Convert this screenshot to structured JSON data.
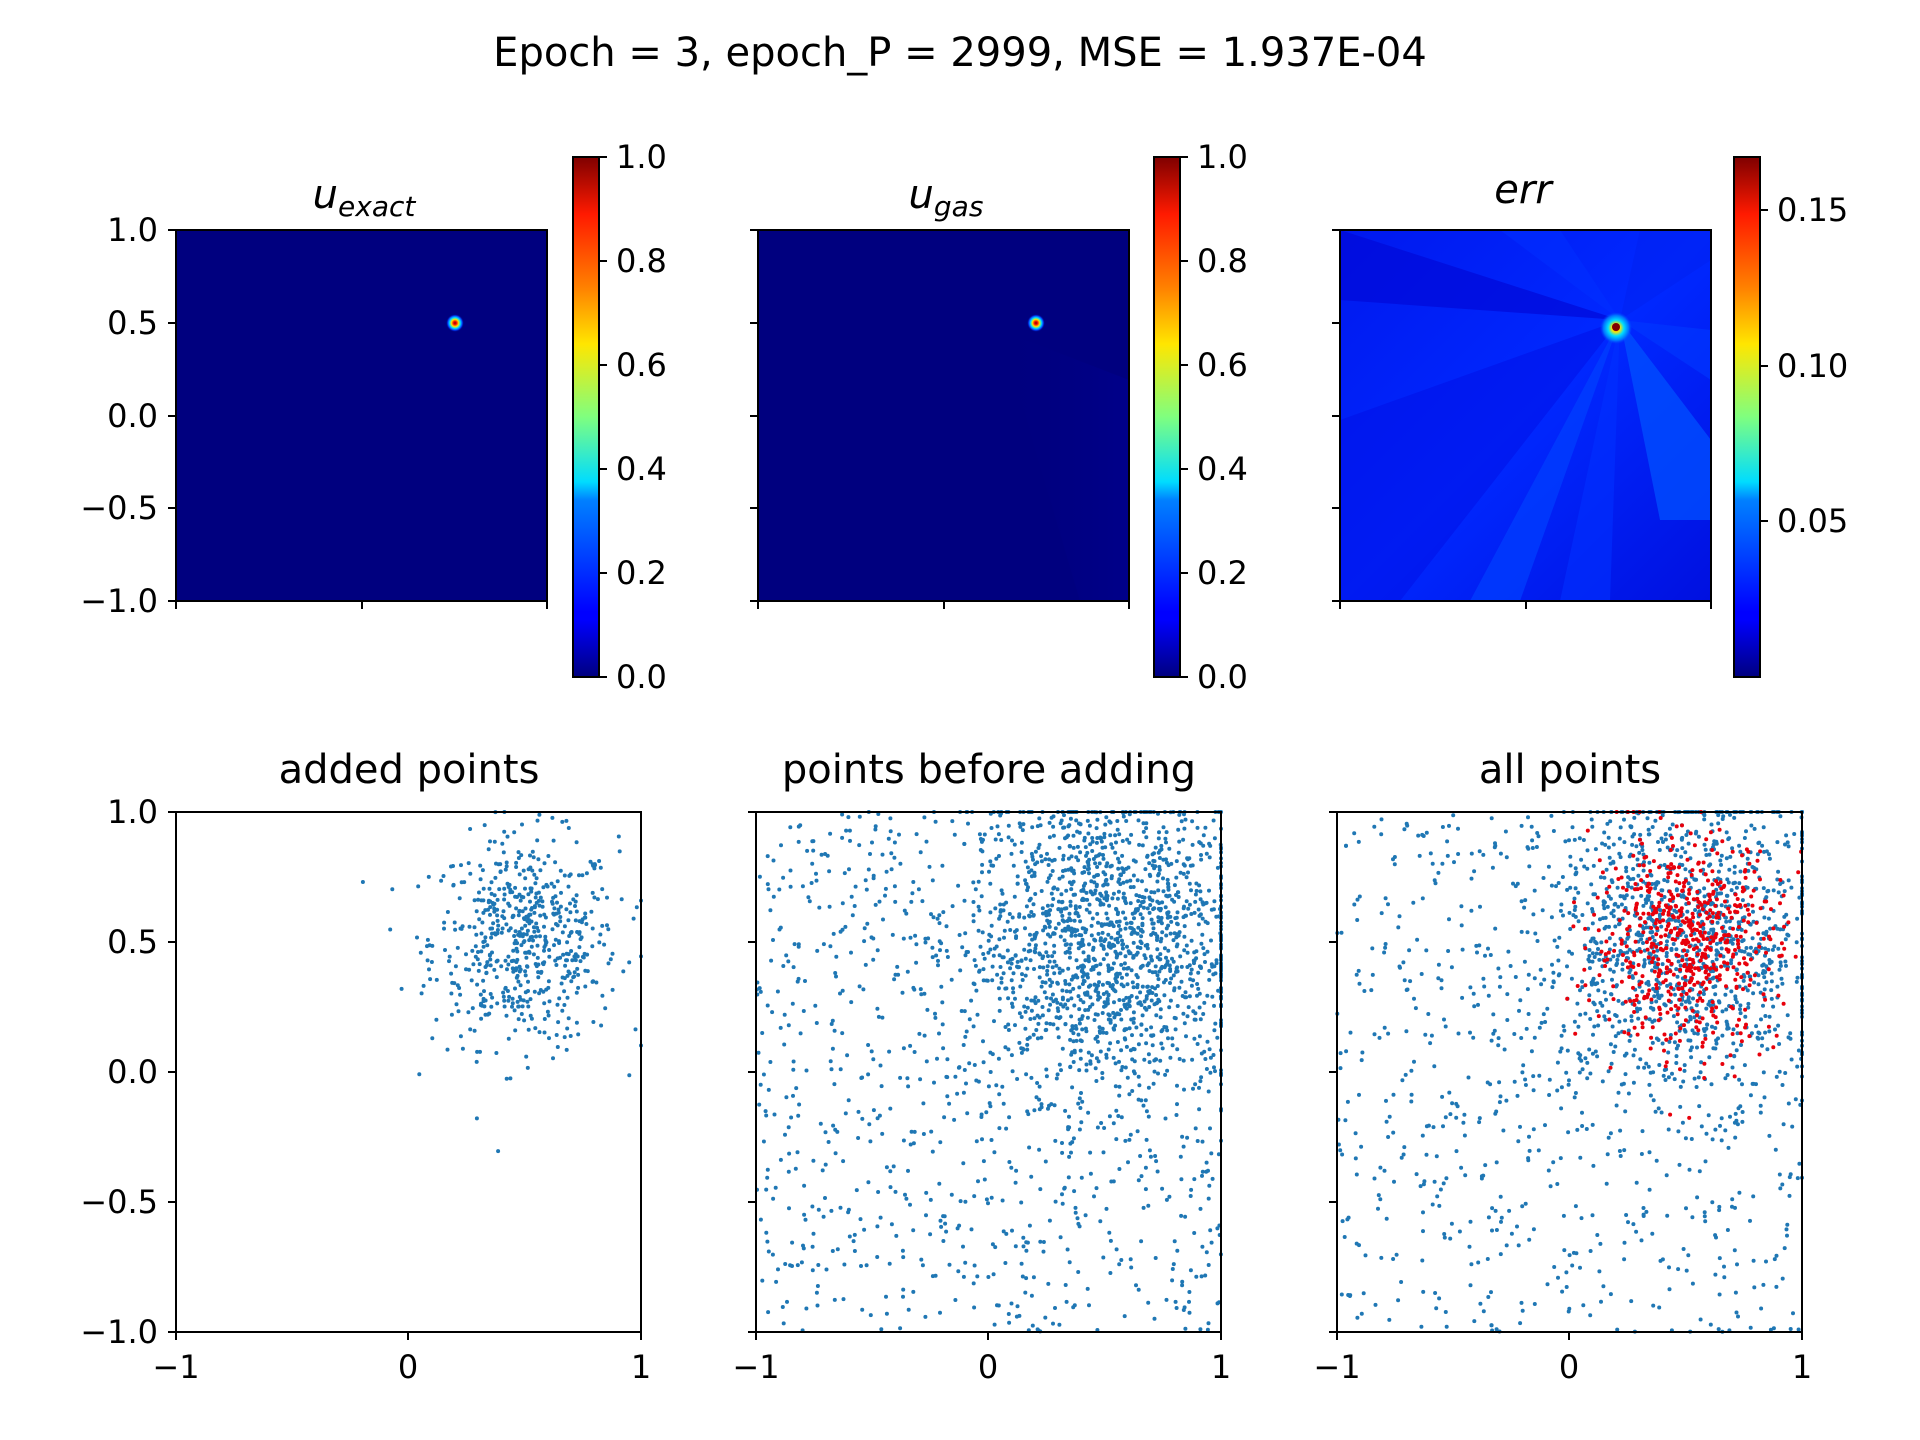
{
  "figure": {
    "title": "Epoch = 3, epoch_P = 2999, MSE = 1.937E-04"
  },
  "colors": {
    "colormap": "jet",
    "jet_low": "#00007f",
    "jet_high": "#7f0000",
    "point_blue": "#1f77b4",
    "added_red": "#e8000b"
  },
  "chart_data": [
    {
      "type": "heatmap",
      "title_main": "u",
      "title_sub": "exact",
      "xlim": [
        -1,
        1
      ],
      "ylim": [
        -1,
        1
      ],
      "ytick_labels": [
        "1.0",
        "0.5",
        "0.0",
        "−0.5",
        "−1.0"
      ],
      "ytick_values": [
        1,
        0.5,
        0,
        -0.5,
        -1
      ],
      "colorbar": {
        "min": 0.0,
        "max": 1.0,
        "tick_values": [
          0.0,
          0.2,
          0.4,
          0.6,
          0.8,
          1.0
        ],
        "tick_labels": [
          "0.0",
          "0.2",
          "0.4",
          "0.6",
          "0.8",
          "1.0"
        ]
      },
      "peak": {
        "x": 0.5,
        "y": 0.5,
        "value": 1.0
      }
    },
    {
      "type": "heatmap",
      "title_main": "u",
      "title_sub": "gas",
      "xlim": [
        -1,
        1
      ],
      "ylim": [
        -1,
        1
      ],
      "colorbar": {
        "min": 0.0,
        "max": 1.0,
        "tick_values": [
          0.0,
          0.2,
          0.4,
          0.6,
          0.8,
          1.0
        ],
        "tick_labels": [
          "0.0",
          "0.2",
          "0.4",
          "0.6",
          "0.8",
          "1.0"
        ]
      },
      "peak": {
        "x": 0.5,
        "y": 0.5,
        "value": 1.0
      }
    },
    {
      "type": "heatmap",
      "title_main": "err",
      "xlim": [
        -1,
        1
      ],
      "ylim": [
        -1,
        1
      ],
      "colorbar": {
        "min": 0.0,
        "max": 0.167,
        "tick_values": [
          0.05,
          0.1,
          0.15
        ],
        "tick_labels": [
          "0.05",
          "0.10",
          "0.15"
        ]
      },
      "peak": {
        "x": 0.5,
        "y": 0.48,
        "value": 0.167
      }
    },
    {
      "type": "scatter",
      "title": "added points",
      "xlim": [
        -1,
        1
      ],
      "ylim": [
        -1,
        1
      ],
      "ytick_labels": [
        "1.0",
        "0.5",
        "0.0",
        "−0.5",
        "−1.0"
      ],
      "ytick_values": [
        1,
        0.5,
        0,
        -0.5,
        -1
      ],
      "xtick_labels": [
        "−1",
        "0",
        "1"
      ],
      "xtick_values": [
        -1,
        0,
        1
      ],
      "series": [
        {
          "color": "#1f77b4",
          "distribution": "gaussian",
          "center": [
            0.5,
            0.5
          ],
          "spread": 0.2,
          "count": 600
        }
      ]
    },
    {
      "type": "scatter",
      "title": "points before adding",
      "xlim": [
        -1,
        1
      ],
      "ylim": [
        -1,
        1
      ],
      "xtick_labels": [
        "−1",
        "0",
        "1"
      ],
      "xtick_values": [
        -1,
        0,
        1
      ],
      "series": [
        {
          "color": "#1f77b4",
          "distribution": "uniform",
          "count": 900
        },
        {
          "color": "#1f77b4",
          "distribution": "gaussian",
          "center": [
            0.5,
            0.5
          ],
          "spread": 0.3,
          "count": 1400
        }
      ]
    },
    {
      "type": "scatter",
      "title": "all points",
      "xlim": [
        -1,
        1
      ],
      "ylim": [
        -1,
        1
      ],
      "xtick_labels": [
        "−1",
        "0",
        "1"
      ],
      "xtick_values": [
        -1,
        0,
        1
      ],
      "series": [
        {
          "color": "#1f77b4",
          "distribution": "uniform",
          "count": 700
        },
        {
          "color": "#1f77b4",
          "distribution": "gaussian",
          "center": [
            0.5,
            0.5
          ],
          "spread": 0.3,
          "count": 1100
        },
        {
          "color": "#e8000b",
          "distribution": "gaussian",
          "center": [
            0.5,
            0.5
          ],
          "spread": 0.2,
          "count": 600
        }
      ]
    }
  ]
}
